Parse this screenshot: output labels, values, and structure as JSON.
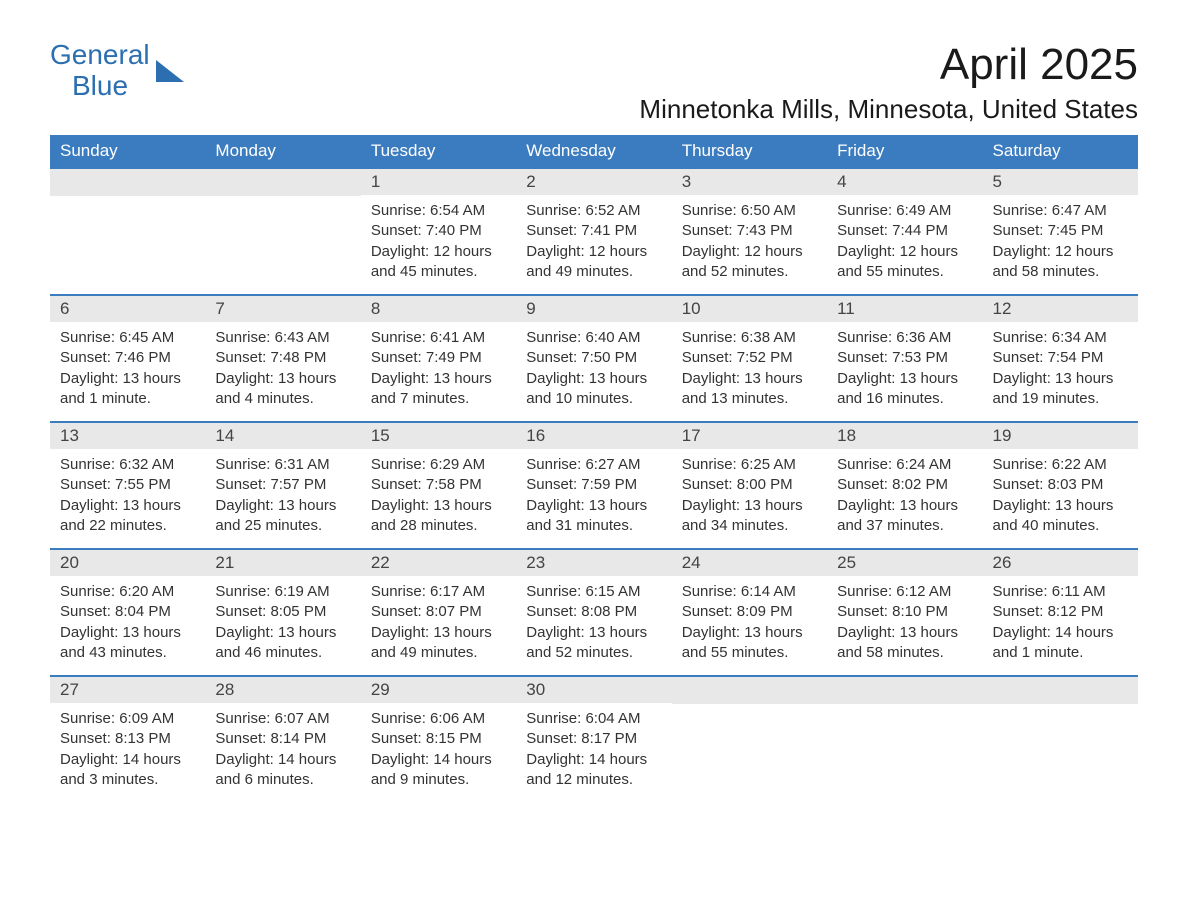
{
  "logo": {
    "general": "General",
    "blue": "Blue",
    "accent_color": "#2b6fb0"
  },
  "title": "April 2025",
  "location": "Minnetonka Mills, Minnesota, United States",
  "colors": {
    "header_bg": "#3b7bbf",
    "header_text": "#ffffff",
    "day_number_bg": "#e8e8e8",
    "row_border": "#3b7bbf",
    "text": "#333333"
  },
  "day_headers": [
    "Sunday",
    "Monday",
    "Tuesday",
    "Wednesday",
    "Thursday",
    "Friday",
    "Saturday"
  ],
  "weeks": [
    [
      null,
      null,
      {
        "num": "1",
        "sunrise": "Sunrise: 6:54 AM",
        "sunset": "Sunset: 7:40 PM",
        "daylight": "Daylight: 12 hours and 45 minutes."
      },
      {
        "num": "2",
        "sunrise": "Sunrise: 6:52 AM",
        "sunset": "Sunset: 7:41 PM",
        "daylight": "Daylight: 12 hours and 49 minutes."
      },
      {
        "num": "3",
        "sunrise": "Sunrise: 6:50 AM",
        "sunset": "Sunset: 7:43 PM",
        "daylight": "Daylight: 12 hours and 52 minutes."
      },
      {
        "num": "4",
        "sunrise": "Sunrise: 6:49 AM",
        "sunset": "Sunset: 7:44 PM",
        "daylight": "Daylight: 12 hours and 55 minutes."
      },
      {
        "num": "5",
        "sunrise": "Sunrise: 6:47 AM",
        "sunset": "Sunset: 7:45 PM",
        "daylight": "Daylight: 12 hours and 58 minutes."
      }
    ],
    [
      {
        "num": "6",
        "sunrise": "Sunrise: 6:45 AM",
        "sunset": "Sunset: 7:46 PM",
        "daylight": "Daylight: 13 hours and 1 minute."
      },
      {
        "num": "7",
        "sunrise": "Sunrise: 6:43 AM",
        "sunset": "Sunset: 7:48 PM",
        "daylight": "Daylight: 13 hours and 4 minutes."
      },
      {
        "num": "8",
        "sunrise": "Sunrise: 6:41 AM",
        "sunset": "Sunset: 7:49 PM",
        "daylight": "Daylight: 13 hours and 7 minutes."
      },
      {
        "num": "9",
        "sunrise": "Sunrise: 6:40 AM",
        "sunset": "Sunset: 7:50 PM",
        "daylight": "Daylight: 13 hours and 10 minutes."
      },
      {
        "num": "10",
        "sunrise": "Sunrise: 6:38 AM",
        "sunset": "Sunset: 7:52 PM",
        "daylight": "Daylight: 13 hours and 13 minutes."
      },
      {
        "num": "11",
        "sunrise": "Sunrise: 6:36 AM",
        "sunset": "Sunset: 7:53 PM",
        "daylight": "Daylight: 13 hours and 16 minutes."
      },
      {
        "num": "12",
        "sunrise": "Sunrise: 6:34 AM",
        "sunset": "Sunset: 7:54 PM",
        "daylight": "Daylight: 13 hours and 19 minutes."
      }
    ],
    [
      {
        "num": "13",
        "sunrise": "Sunrise: 6:32 AM",
        "sunset": "Sunset: 7:55 PM",
        "daylight": "Daylight: 13 hours and 22 minutes."
      },
      {
        "num": "14",
        "sunrise": "Sunrise: 6:31 AM",
        "sunset": "Sunset: 7:57 PM",
        "daylight": "Daylight: 13 hours and 25 minutes."
      },
      {
        "num": "15",
        "sunrise": "Sunrise: 6:29 AM",
        "sunset": "Sunset: 7:58 PM",
        "daylight": "Daylight: 13 hours and 28 minutes."
      },
      {
        "num": "16",
        "sunrise": "Sunrise: 6:27 AM",
        "sunset": "Sunset: 7:59 PM",
        "daylight": "Daylight: 13 hours and 31 minutes."
      },
      {
        "num": "17",
        "sunrise": "Sunrise: 6:25 AM",
        "sunset": "Sunset: 8:00 PM",
        "daylight": "Daylight: 13 hours and 34 minutes."
      },
      {
        "num": "18",
        "sunrise": "Sunrise: 6:24 AM",
        "sunset": "Sunset: 8:02 PM",
        "daylight": "Daylight: 13 hours and 37 minutes."
      },
      {
        "num": "19",
        "sunrise": "Sunrise: 6:22 AM",
        "sunset": "Sunset: 8:03 PM",
        "daylight": "Daylight: 13 hours and 40 minutes."
      }
    ],
    [
      {
        "num": "20",
        "sunrise": "Sunrise: 6:20 AM",
        "sunset": "Sunset: 8:04 PM",
        "daylight": "Daylight: 13 hours and 43 minutes."
      },
      {
        "num": "21",
        "sunrise": "Sunrise: 6:19 AM",
        "sunset": "Sunset: 8:05 PM",
        "daylight": "Daylight: 13 hours and 46 minutes."
      },
      {
        "num": "22",
        "sunrise": "Sunrise: 6:17 AM",
        "sunset": "Sunset: 8:07 PM",
        "daylight": "Daylight: 13 hours and 49 minutes."
      },
      {
        "num": "23",
        "sunrise": "Sunrise: 6:15 AM",
        "sunset": "Sunset: 8:08 PM",
        "daylight": "Daylight: 13 hours and 52 minutes."
      },
      {
        "num": "24",
        "sunrise": "Sunrise: 6:14 AM",
        "sunset": "Sunset: 8:09 PM",
        "daylight": "Daylight: 13 hours and 55 minutes."
      },
      {
        "num": "25",
        "sunrise": "Sunrise: 6:12 AM",
        "sunset": "Sunset: 8:10 PM",
        "daylight": "Daylight: 13 hours and 58 minutes."
      },
      {
        "num": "26",
        "sunrise": "Sunrise: 6:11 AM",
        "sunset": "Sunset: 8:12 PM",
        "daylight": "Daylight: 14 hours and 1 minute."
      }
    ],
    [
      {
        "num": "27",
        "sunrise": "Sunrise: 6:09 AM",
        "sunset": "Sunset: 8:13 PM",
        "daylight": "Daylight: 14 hours and 3 minutes."
      },
      {
        "num": "28",
        "sunrise": "Sunrise: 6:07 AM",
        "sunset": "Sunset: 8:14 PM",
        "daylight": "Daylight: 14 hours and 6 minutes."
      },
      {
        "num": "29",
        "sunrise": "Sunrise: 6:06 AM",
        "sunset": "Sunset: 8:15 PM",
        "daylight": "Daylight: 14 hours and 9 minutes."
      },
      {
        "num": "30",
        "sunrise": "Sunrise: 6:04 AM",
        "sunset": "Sunset: 8:17 PM",
        "daylight": "Daylight: 14 hours and 12 minutes."
      },
      null,
      null,
      null
    ]
  ]
}
